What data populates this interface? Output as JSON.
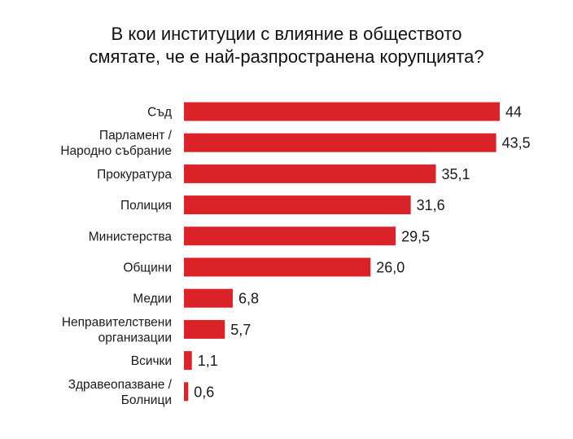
{
  "chart_data": {
    "type": "bar",
    "orientation": "horizontal",
    "title_lines": [
      "В кои институции с влияние в обществото",
      "смятате, че е най-разпространена корупцията?"
    ],
    "categories": [
      [
        "Съд"
      ],
      [
        "Парламент /",
        "Народно събрание"
      ],
      [
        "Прокуратура"
      ],
      [
        "Полиция"
      ],
      [
        "Министерства"
      ],
      [
        "Общини"
      ],
      [
        "Медии"
      ],
      [
        "Неправителствени",
        "организации"
      ],
      [
        "Всички"
      ],
      [
        "Здравеопазване /",
        "Болници"
      ]
    ],
    "values": [
      44,
      43.5,
      35.1,
      31.6,
      29.5,
      26.0,
      6.8,
      5.7,
      1.1,
      0.6
    ],
    "value_labels": [
      "44",
      "43,5",
      "35,1",
      "31,6",
      "29,5",
      "26,0",
      "6,8",
      "5,7",
      "1,1",
      "0,6"
    ],
    "xlim": [
      0,
      44
    ],
    "bar_color": "#dc2229",
    "grid": false,
    "legend": "none"
  }
}
